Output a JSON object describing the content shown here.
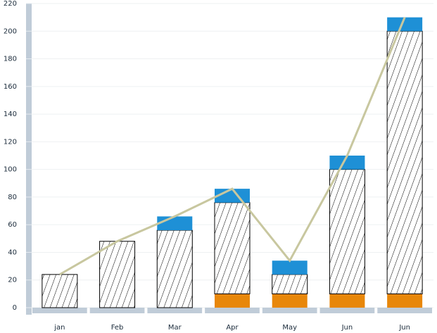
{
  "chart_data": {
    "type": "bar",
    "stacked": true,
    "categories": [
      "jan",
      "Feb",
      "Mar",
      "Apr",
      "May",
      "Jun",
      "Jun"
    ],
    "series": [
      {
        "color": "#e8870a",
        "values": [
          0,
          0,
          0,
          10,
          10,
          10,
          10
        ]
      },
      {
        "color": "hatch",
        "values": [
          24,
          48,
          56,
          66,
          14,
          90,
          190
        ]
      },
      {
        "color": "#1e90d6",
        "values": [
          0,
          0,
          10,
          10,
          10,
          10,
          10
        ]
      }
    ],
    "line": {
      "color": "#c8c79f",
      "values": [
        24,
        48,
        66,
        86,
        34,
        110,
        210
      ]
    },
    "ylim": [
      0,
      220
    ],
    "yticks": [
      0,
      20,
      40,
      60,
      80,
      100,
      120,
      140,
      160,
      180,
      200,
      220
    ],
    "grid": true
  }
}
